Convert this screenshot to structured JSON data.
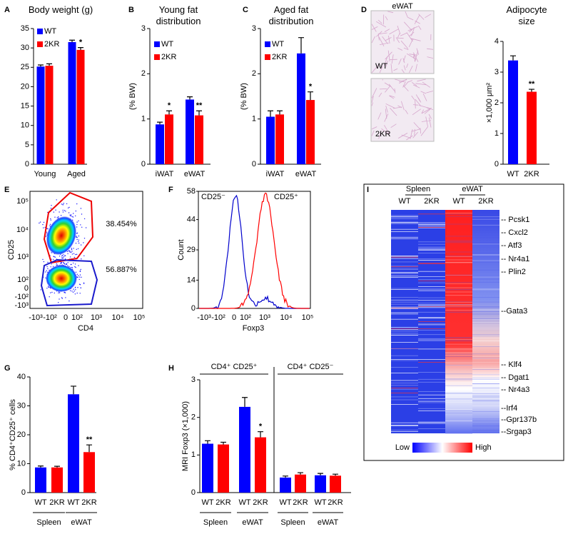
{
  "panel_letters": [
    "A",
    "B",
    "C",
    "D",
    "E",
    "F",
    "G",
    "H",
    "I"
  ],
  "chart_data": [
    {
      "type": "bar",
      "title": "Body weight (g)",
      "categories": [
        "Young",
        "Aged"
      ],
      "series": [
        {
          "name": "WT",
          "color": "#0000ff",
          "values": [
            25.2,
            31.5
          ],
          "errors": [
            0.4,
            0.5
          ],
          "significance": [
            null,
            null
          ]
        },
        {
          "name": "2KR",
          "color": "#ff0000",
          "values": [
            25.4,
            29.5
          ],
          "errors": [
            0.5,
            0.6
          ],
          "significance": [
            null,
            "*"
          ]
        }
      ],
      "ylim": [
        0,
        35
      ],
      "yticks": [
        0,
        5,
        10,
        15,
        20,
        25,
        30,
        35
      ]
    },
    {
      "type": "bar",
      "title": "Young fat distribution",
      "y_label": "(% BW)",
      "categories": [
        "iWAT",
        "eWAT"
      ],
      "series": [
        {
          "name": "WT",
          "color": "#0000ff",
          "values": [
            0.88,
            1.43
          ],
          "errors": [
            0.05,
            0.06
          ],
          "significance": [
            null,
            null
          ]
        },
        {
          "name": "2KR",
          "color": "#ff0000",
          "values": [
            1.1,
            1.08
          ],
          "errors": [
            0.08,
            0.1
          ],
          "significance": [
            "*",
            "**"
          ]
        }
      ],
      "ylim": [
        0,
        3
      ],
      "yticks": [
        0,
        1,
        2,
        3
      ]
    },
    {
      "type": "bar",
      "title": "Aged fat distribution",
      "y_label": "(% BW)",
      "categories": [
        "iWAT",
        "eWAT"
      ],
      "series": [
        {
          "name": "WT",
          "color": "#0000ff",
          "values": [
            1.05,
            2.45
          ],
          "errors": [
            0.13,
            0.35
          ],
          "significance": [
            null,
            null
          ]
        },
        {
          "name": "2KR",
          "color": "#ff0000",
          "values": [
            1.1,
            1.42
          ],
          "errors": [
            0.08,
            0.18
          ],
          "significance": [
            null,
            "*"
          ]
        }
      ],
      "ylim": [
        0,
        3
      ],
      "yticks": [
        0,
        1,
        2,
        3
      ]
    },
    {
      "type": "bar",
      "title": "Adipocyte size",
      "y_label": "×1,000 μm²",
      "categories": [
        "WT",
        "2KR"
      ],
      "values": [
        3.38,
        2.36
      ],
      "errors": [
        0.15,
        0.08
      ],
      "significance": [
        null,
        "**"
      ],
      "colors": [
        "#0000ff",
        "#ff0000"
      ],
      "ylim": [
        0,
        4
      ],
      "yticks": [
        0,
        1,
        2,
        3,
        4
      ]
    },
    {
      "type": "bar",
      "y_label": "% CD4⁺CD25⁺ cells",
      "colors": [
        "#0000ff",
        "#ff0000"
      ],
      "groups": [
        {
          "name": "Spleen",
          "categories": [
            "WT",
            "2KR"
          ],
          "values": [
            8.7,
            8.7
          ],
          "errors": [
            0.5,
            0.4
          ],
          "significance": [
            null,
            null
          ]
        },
        {
          "name": "eWAT",
          "categories": [
            "WT",
            "2KR"
          ],
          "values": [
            34,
            14
          ],
          "errors": [
            2.8,
            2.5
          ],
          "significance": [
            null,
            "**"
          ]
        }
      ],
      "ylim": [
        0,
        40
      ],
      "yticks": [
        0,
        10,
        20,
        30,
        40
      ]
    },
    {
      "type": "bar",
      "y_label": "MRI Foxp3 (×1,000)",
      "colors": [
        "#0000ff",
        "#ff0000"
      ],
      "supergroups": [
        {
          "name": "CD4⁺ CD25⁺",
          "groups": [
            {
              "name": "Spleen",
              "categories": [
                "WT",
                "2KR"
              ],
              "values": [
                1.3,
                1.28
              ],
              "errors": [
                0.08,
                0.06
              ],
              "significance": [
                null,
                null
              ]
            },
            {
              "name": "eWAT",
              "categories": [
                "WT",
                "2KR"
              ],
              "values": [
                2.28,
                1.47
              ],
              "errors": [
                0.25,
                0.15
              ],
              "significance": [
                null,
                "*"
              ]
            }
          ]
        },
        {
          "name": "CD4⁺ CD25⁻",
          "groups": [
            {
              "name": "Spleen",
              "categories": [
                "WT",
                "2KR"
              ],
              "values": [
                0.4,
                0.48
              ],
              "errors": [
                0.04,
                0.05
              ],
              "significance": [
                null,
                null
              ]
            },
            {
              "name": "eWAT",
              "categories": [
                "WT",
                "2KR"
              ],
              "values": [
                0.46,
                0.45
              ],
              "errors": [
                0.05,
                0.04
              ],
              "significance": [
                null,
                null
              ]
            }
          ]
        }
      ],
      "ylim": [
        0,
        3
      ],
      "yticks": [
        0,
        1,
        2,
        3
      ]
    }
  ],
  "micrographs": {
    "title": "eWAT",
    "labels": [
      "WT",
      "2KR"
    ]
  },
  "flow": {
    "x_label": "CD4",
    "y_label": "CD25",
    "gates": [
      "38.454%",
      "56.887%"
    ],
    "ticks": [
      "-10³",
      "-10²",
      "0",
      "10²",
      "10³",
      "10⁴",
      "10⁵"
    ]
  },
  "histogram": {
    "x_label": "Foxp3",
    "y_label": "Count",
    "ylim": [
      0,
      58
    ],
    "yticks": [
      0,
      14,
      29,
      44,
      58
    ],
    "xticks": [
      "-10³",
      "-10²",
      "0",
      "10²",
      "10³",
      "10⁴",
      "10⁵"
    ],
    "series": [
      {
        "name": "CD25⁻",
        "color": "#0000cc"
      },
      {
        "name": "CD25⁺",
        "color": "#ff0000"
      }
    ]
  },
  "heatmap": {
    "groups": [
      "Spleen",
      "eWAT"
    ],
    "columns": [
      "WT",
      "2KR",
      "WT",
      "2KR"
    ],
    "genes": [
      "-- Pcsk1",
      "-- Cxcl2",
      "-- Atf3",
      "-- Nr4a1",
      "-- Plin2",
      "--Gata3",
      "-- Klf4",
      "-- Dgat1",
      "-- Nr4a3",
      "--Irf4",
      "--Gpr137b",
      "--Srgap3"
    ],
    "scale": [
      "Low",
      "High"
    ]
  }
}
